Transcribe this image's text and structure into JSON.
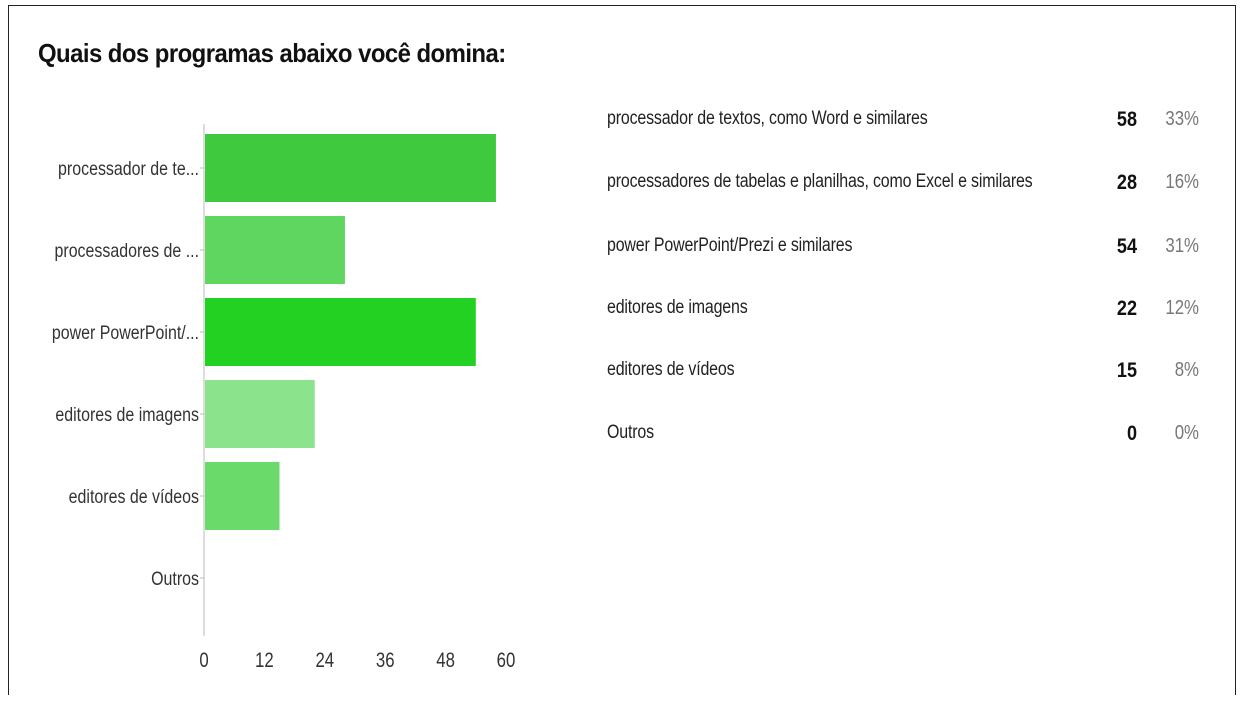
{
  "title": "Quais dos programas abaixo você domina:",
  "chart_data": {
    "type": "bar",
    "orientation": "horizontal",
    "categories": [
      "processador de te...",
      "processadores de ...",
      "power PowerPoint/...",
      "editores de imagens",
      "editores de vídeos",
      "Outros"
    ],
    "values": [
      58,
      28,
      54,
      22,
      15,
      0
    ],
    "colors": [
      "#3ec93e",
      "#5fd65f",
      "#22d122",
      "#8be38b",
      "#6ada6a",
      "#b8efb8"
    ],
    "xlim": [
      0,
      60
    ],
    "xticks": [
      "0",
      "12",
      "24",
      "36",
      "48",
      "60"
    ],
    "grid": false
  },
  "summary": {
    "rows": [
      {
        "label": "processador de textos, como Word e similares",
        "count": "58",
        "pct": "33%"
      },
      {
        "label": "processadores de tabelas e planilhas, como Excel e similares",
        "count": "28",
        "pct": "16%"
      },
      {
        "label": "power PowerPoint/Prezi e similares",
        "count": "54",
        "pct": "31%"
      },
      {
        "label": "editores de imagens",
        "count": "22",
        "pct": "12%"
      },
      {
        "label": "editores de vídeos",
        "count": "15",
        "pct": "8%"
      },
      {
        "label": "Outros",
        "count": "0",
        "pct": "0%"
      }
    ]
  }
}
